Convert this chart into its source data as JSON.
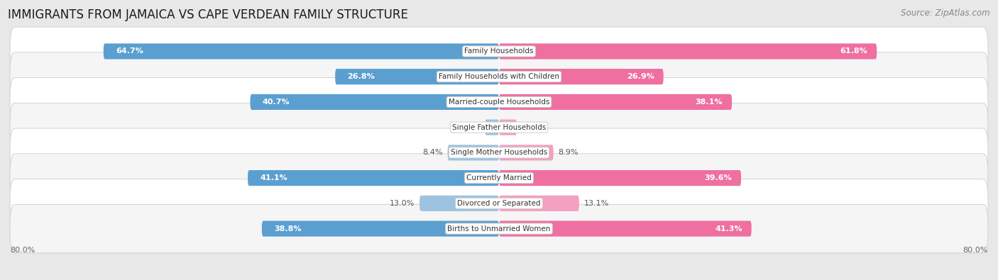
{
  "title": "IMMIGRANTS FROM JAMAICA VS CAPE VERDEAN FAMILY STRUCTURE",
  "source": "Source: ZipAtlas.com",
  "categories": [
    "Family Households",
    "Family Households with Children",
    "Married-couple Households",
    "Single Father Households",
    "Single Mother Households",
    "Currently Married",
    "Divorced or Separated",
    "Births to Unmarried Women"
  ],
  "jamaica_values": [
    64.7,
    26.8,
    40.7,
    2.3,
    8.4,
    41.1,
    13.0,
    38.8
  ],
  "capeverdean_values": [
    61.8,
    26.9,
    38.1,
    2.9,
    8.9,
    39.6,
    13.1,
    41.3
  ],
  "jamaica_color_dark": "#5B9FD0",
  "jamaica_color_light": "#9DC3E0",
  "capeverdean_color_dark": "#EE6FA0",
  "capeverdean_color_light": "#F4A0C0",
  "label_white": "#ffffff",
  "label_dark": "#555555",
  "bg_color": "#e8e8e8",
  "row_color_odd": "#f5f5f5",
  "row_color_even": "#ffffff",
  "xlim_abs": 80,
  "axis_label_left": "80.0%",
  "axis_label_right": "80.0%",
  "bar_height": 0.62,
  "title_fontsize": 12,
  "source_fontsize": 8.5,
  "value_fontsize": 8,
  "category_fontsize": 7.5,
  "legend_fontsize": 8.5,
  "large_thresh": 15
}
